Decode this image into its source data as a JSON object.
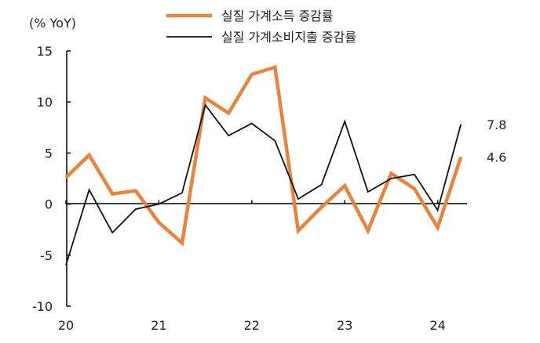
{
  "chart_data": {
    "type": "line",
    "unit_label": "(% YoY)",
    "x_tick_labels": [
      "20",
      "21",
      "22",
      "23",
      "24"
    ],
    "x": [
      "20Q1",
      "20Q2",
      "20Q3",
      "20Q4",
      "21Q1",
      "21Q2",
      "21Q3",
      "21Q4",
      "22Q1",
      "22Q2",
      "22Q3",
      "22Q4",
      "23Q1",
      "23Q2",
      "23Q3",
      "23Q4",
      "24Q1",
      "24Q2"
    ],
    "ylim": [
      -10,
      15
    ],
    "y_ticks": [
      15,
      10,
      5,
      0,
      -5,
      -10
    ],
    "y_tick_labels": [
      "15",
      "10",
      "5",
      "0",
      "-5",
      "-10"
    ],
    "legend_position": "top",
    "grid": false,
    "series": [
      {
        "name": "실질 가계소득 증감률",
        "color": "#E8843C",
        "values": [
          2.6,
          4.8,
          1.0,
          1.3,
          -1.8,
          -3.8,
          10.4,
          8.9,
          12.7,
          13.4,
          -2.6,
          -0.3,
          1.8,
          -2.6,
          3.0,
          1.5,
          -2.3,
          4.6
        ],
        "end_label": "4.6"
      },
      {
        "name": "실질 가계소비지출 증감률",
        "color": "#111111",
        "values": [
          -6.0,
          1.4,
          -2.8,
          -0.5,
          0.0,
          1.1,
          9.7,
          6.7,
          7.9,
          6.2,
          0.5,
          1.9,
          8.1,
          1.2,
          2.5,
          2.9,
          -0.6,
          7.8
        ],
        "end_label": "7.8"
      }
    ]
  }
}
